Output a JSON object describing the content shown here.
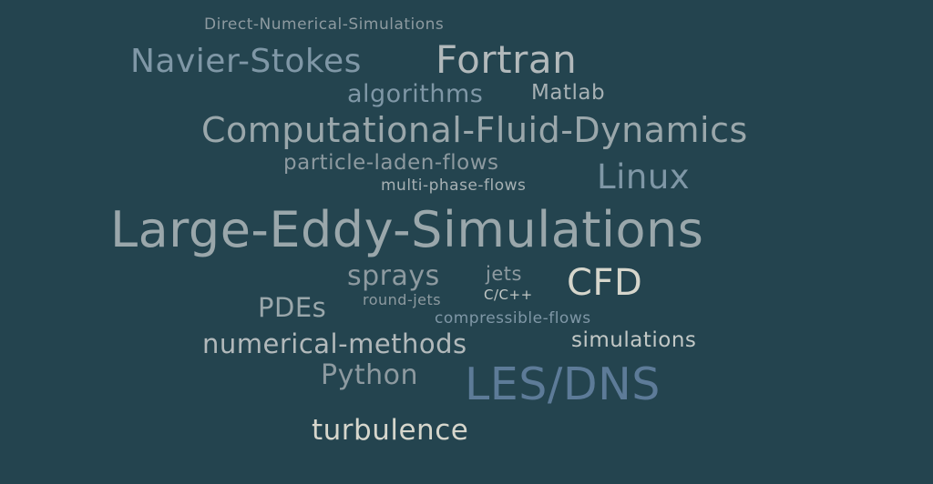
{
  "tag_cloud": {
    "background": "#24444f",
    "words": [
      {
        "text": "Direct-Numerical-Simulations",
        "weight": 1
      },
      {
        "text": "Navier-Stokes",
        "weight": 4
      },
      {
        "text": "Fortran",
        "weight": 5
      },
      {
        "text": "algorithms",
        "weight": 3
      },
      {
        "text": "Matlab",
        "weight": 2
      },
      {
        "text": "Computational-Fluid-Dynamics",
        "weight": 6
      },
      {
        "text": "particle-laden-flows",
        "weight": 2
      },
      {
        "text": "Linux",
        "weight": 4
      },
      {
        "text": "multi-phase-flows",
        "weight": 1
      },
      {
        "text": "Large-Eddy-Simulations",
        "weight": 8
      },
      {
        "text": "sprays",
        "weight": 3
      },
      {
        "text": "jets",
        "weight": 2
      },
      {
        "text": "CFD",
        "weight": 5
      },
      {
        "text": "round-jets",
        "weight": 1
      },
      {
        "text": "C/C++",
        "weight": 1
      },
      {
        "text": "PDEs",
        "weight": 3
      },
      {
        "text": "compressible-flows",
        "weight": 1
      },
      {
        "text": "numerical-methods",
        "weight": 3
      },
      {
        "text": "simulations",
        "weight": 2
      },
      {
        "text": "Python",
        "weight": 3
      },
      {
        "text": "LES/DNS",
        "weight": 6
      },
      {
        "text": "turbulence",
        "weight": 3
      }
    ]
  }
}
